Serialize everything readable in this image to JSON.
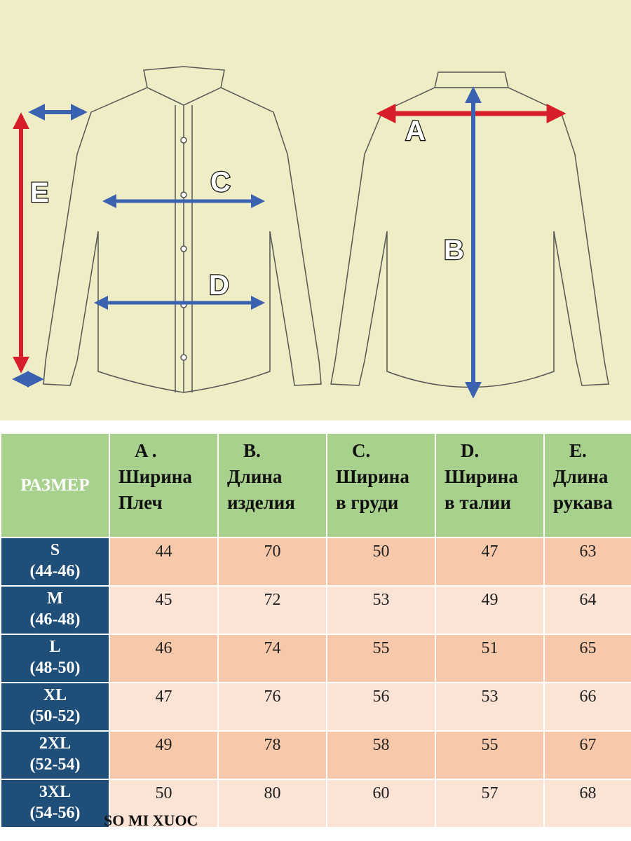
{
  "diagram": {
    "labels": [
      "A",
      "B",
      "C",
      "D",
      "E"
    ],
    "colors": {
      "background": "#efedc6",
      "red_arrow": "#d81e2a",
      "blue_arrow": "#3a62b0",
      "line": "#555555"
    }
  },
  "table": {
    "size_header": "РАЗМЕР",
    "columns": [
      {
        "letter": "A .",
        "line1": "Ширина",
        "line2": "Плеч"
      },
      {
        "letter": "B.",
        "line1": "Длина",
        "line2": "изделия"
      },
      {
        "letter": "C.",
        "line1": "Ширина",
        "line2": "в груди"
      },
      {
        "letter": "D.",
        "line1": "Ширина",
        "line2": "в талии"
      },
      {
        "letter": "E.",
        "line1": "Длина",
        "line2": "рукава"
      }
    ],
    "rows": [
      {
        "size": "S",
        "range": "(44-46)",
        "values": [
          "44",
          "70",
          "50",
          "47",
          "63"
        ]
      },
      {
        "size": "M",
        "range": "(46-48)",
        "values": [
          "45",
          "72",
          "53",
          "49",
          "64"
        ]
      },
      {
        "size": "L",
        "range": "(48-50)",
        "values": [
          "46",
          "74",
          "55",
          "51",
          "65"
        ]
      },
      {
        "size": "XL",
        "range": "(50-52)",
        "values": [
          "47",
          "76",
          "56",
          "53",
          "66"
        ]
      },
      {
        "size": "2XL",
        "range": "(52-54)",
        "values": [
          "49",
          "78",
          "58",
          "55",
          "67"
        ]
      },
      {
        "size": "3XL",
        "range": "(54-56)",
        "values": [
          "50",
          "80",
          "60",
          "57",
          "68"
        ]
      }
    ],
    "colors": {
      "header": "#a9d18e",
      "size_col": "#1f4e79",
      "row_odd": "#f8c8aa",
      "row_even": "#fbe3d5"
    }
  },
  "caption": "SO MI XUOC"
}
